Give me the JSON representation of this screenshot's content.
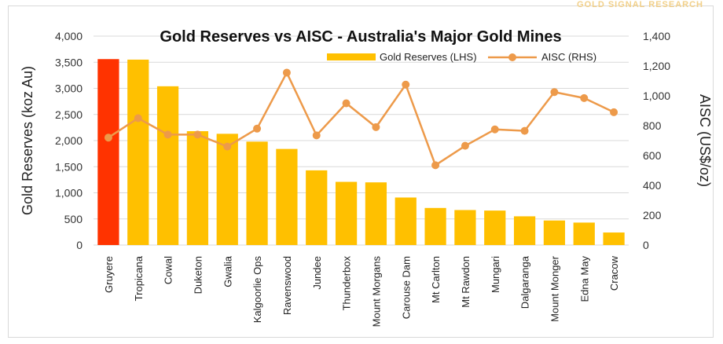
{
  "watermark": "GOLD SIGNAL RESEARCH",
  "chart_data": {
    "type": "bar",
    "title": "Gold Reserves vs AISC - Australia's Major Gold Mines",
    "ylabel": "Gold Reserves (koz Au)",
    "y2label": "AISC (US$/oz)",
    "ylim": [
      0,
      4000
    ],
    "y2lim": [
      0,
      1400
    ],
    "yticks": [
      "0",
      "500",
      "1,000",
      "1,500",
      "2,000",
      "2,500",
      "3,000",
      "3,500",
      "4,000"
    ],
    "y2ticks": [
      "0",
      "200",
      "400",
      "600",
      "800",
      "1,000",
      "1,200",
      "1,400"
    ],
    "grid": true,
    "legend_position": "top-right",
    "categories": [
      "Gruyere",
      "Tropicana",
      "Cowal",
      "Duketon",
      "Gwalia",
      "Kalgoorlie Ops",
      "Ravenswood",
      "Jundee",
      "Thunderbox",
      "Mount Morgans",
      "Carouse Dam",
      "Mt Carlton",
      "Mt Rawdon",
      "Mungari",
      "Dalgaranga",
      "Mount Monger",
      "Edna May",
      "Cracow"
    ],
    "series": [
      {
        "name": "Gold Reserves (LHS)",
        "type": "bar",
        "axis": "left",
        "color": "#ffc000",
        "highlight_color": "#ff3300",
        "highlight_index": 0,
        "values": [
          3560,
          3550,
          3040,
          2180,
          2130,
          1980,
          1840,
          1430,
          1210,
          1200,
          910,
          710,
          670,
          660,
          550,
          470,
          430,
          240
        ]
      },
      {
        "name": "AISC (RHS)",
        "type": "line",
        "axis": "right",
        "color": "#ed9a4a",
        "values": [
          720,
          850,
          740,
          740,
          660,
          780,
          1155,
          735,
          950,
          790,
          1075,
          535,
          665,
          775,
          765,
          1025,
          985,
          890
        ]
      }
    ]
  }
}
